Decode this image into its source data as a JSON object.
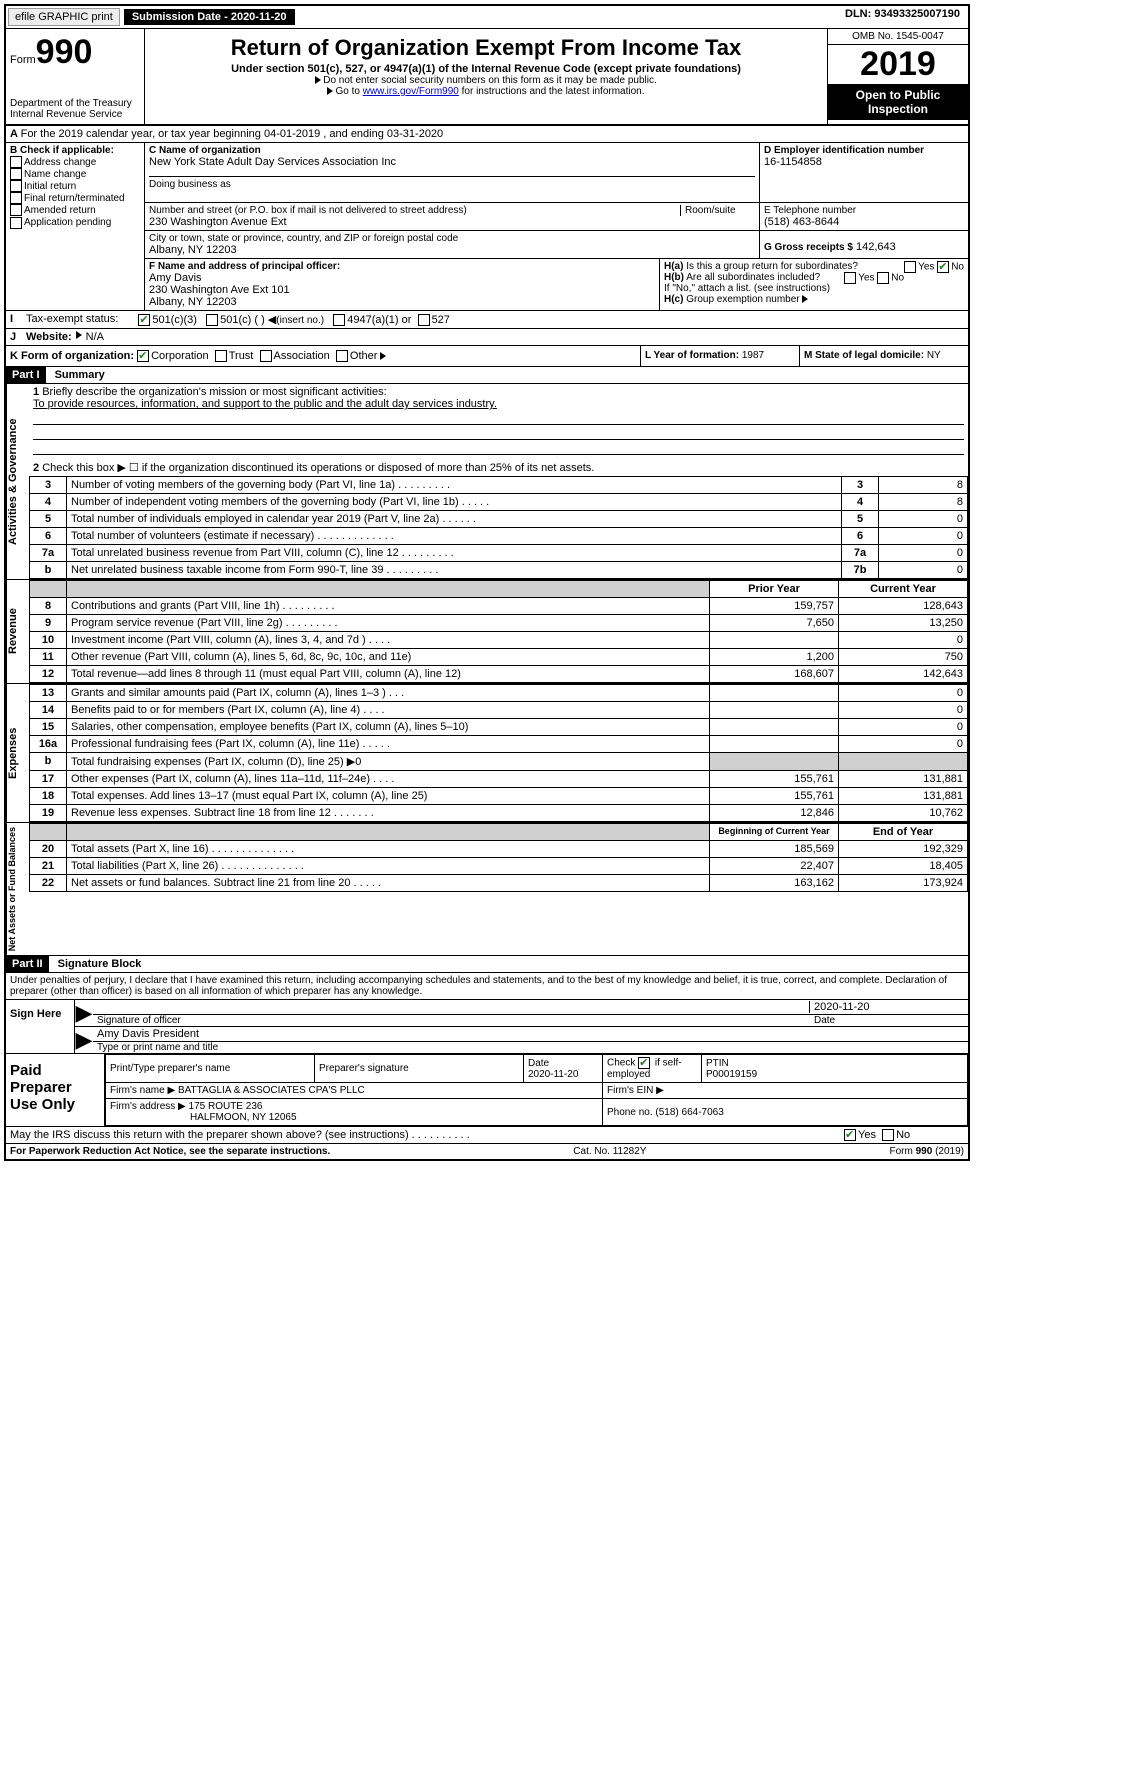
{
  "topbar": {
    "efile": "efile GRAPHIC print",
    "submission_label": "Submission Date - 2020-11-20",
    "dln": "DLN: 93493325007190"
  },
  "header": {
    "form_prefix": "Form",
    "form_number": "990",
    "dept1": "Department of the Treasury",
    "dept2": "Internal Revenue Service",
    "title": "Return of Organization Exempt From Income Tax",
    "subtitle": "Under section 501(c), 527, or 4947(a)(1) of the Internal Revenue Code (except private foundations)",
    "note1": "Do not enter social security numbers on this form as it may be made public.",
    "note2_pre": "Go to ",
    "note2_link": "www.irs.gov/Form990",
    "note2_post": " for instructions and the latest information.",
    "omb": "OMB No. 1545-0047",
    "year": "2019",
    "open": "Open to Public Inspection"
  },
  "lineA": "For the 2019 calendar year, or tax year beginning 04-01-2019   , and ending 03-31-2020",
  "boxB": {
    "title": "B Check if applicable:",
    "items": [
      "Address change",
      "Name change",
      "Initial return",
      "Final return/terminated",
      "Amended return",
      "Application pending"
    ]
  },
  "boxC": {
    "label_name": "C Name of organization",
    "org_name": "New York State Adult Day Services Association Inc",
    "dba_label": "Doing business as",
    "addr_label": "Number and street (or P.O. box if mail is not delivered to street address)",
    "room_label": "Room/suite",
    "street": "230 Washington Avenue Ext",
    "city_label": "City or town, state or province, country, and ZIP or foreign postal code",
    "city": "Albany, NY  12203"
  },
  "boxD": {
    "label": "D Employer identification number",
    "value": "16-1154858"
  },
  "boxE": {
    "label": "E Telephone number",
    "value": "(518) 463-8644"
  },
  "boxF": {
    "label": "F  Name and address of principal officer:",
    "name": "Amy Davis",
    "addr1": "230 Washington Ave Ext 101",
    "addr2": "Albany, NY  12203"
  },
  "boxG": {
    "label": "G Gross receipts $",
    "value": "142,643"
  },
  "boxH": {
    "a": "Is this a group return for subordinates?",
    "b": "Are all subordinates included?",
    "note": "If \"No,\" attach a list. (see instructions)",
    "c": "Group exemption number"
  },
  "yes": "Yes",
  "no": "No",
  "lineI": {
    "label": "Tax-exempt status:",
    "opt1": "501(c)(3)",
    "opt2": "501(c) (   )",
    "opt2_after": "(insert no.)",
    "opt3": "4947(a)(1) or",
    "opt4": "527"
  },
  "lineJ": {
    "label": "Website:",
    "value": "N/A"
  },
  "lineK": {
    "label": "K Form of organization:",
    "opts": [
      "Corporation",
      "Trust",
      "Association",
      "Other"
    ]
  },
  "lineL": {
    "label": "L Year of formation:",
    "value": "1987"
  },
  "lineM": {
    "label": "M State of legal domicile:",
    "value": "NY"
  },
  "part1": {
    "num": "Part I",
    "title": "Summary",
    "mission_label": "Briefly describe the organization's mission or most significant activities:",
    "mission_text": "To provide resources, information, and support to the public and the adult day services industry.",
    "line2": "Check this box ▶ ☐  if the organization discontinued its operations or disposed of more than 25% of its net assets.",
    "vlabels": {
      "gov": "Activities & Governance",
      "rev": "Revenue",
      "exp": "Expenses",
      "net": "Net Assets or Fund Balances"
    },
    "gov_rows": [
      {
        "n": "3",
        "t": "Number of voting members of the governing body (Part VI, line 1a)   .    .    .    .    .    .    .    .    .",
        "b": "3",
        "v": "8"
      },
      {
        "n": "4",
        "t": "Number of independent voting members of the governing body (Part VI, line 1b)   .    .    .    .    .",
        "b": "4",
        "v": "8"
      },
      {
        "n": "5",
        "t": "Total number of individuals employed in calendar year 2019 (Part V, line 2a)   .    .    .    .    .    .",
        "b": "5",
        "v": "0"
      },
      {
        "n": "6",
        "t": "Total number of volunteers (estimate if necessary)   .    .    .    .    .    .    .    .    .    .    .    .    .",
        "b": "6",
        "v": "0"
      },
      {
        "n": "7a",
        "t": "Total unrelated business revenue from Part VIII, column (C), line 12   .    .    .    .    .    .    .    .    .",
        "b": "7a",
        "v": "0"
      },
      {
        "n": "b",
        "t": "Net unrelated business taxable income from Form 990-T, line 39   .    .    .    .    .    .    .    .    .",
        "b": "7b",
        "v": "0"
      }
    ],
    "col_hdr": {
      "prior": "Prior Year",
      "current": "Current Year"
    },
    "rev_rows": [
      {
        "n": "8",
        "t": "Contributions and grants (Part VIII, line 1h)   .    .    .    .    .    .    .    .    .",
        "p": "159,757",
        "c": "128,643"
      },
      {
        "n": "9",
        "t": "Program service revenue (Part VIII, line 2g)   .    .    .    .    .    .    .    .    .",
        "p": "7,650",
        "c": "13,250"
      },
      {
        "n": "10",
        "t": "Investment income (Part VIII, column (A), lines 3, 4, and 7d )   .    .    .    .",
        "p": "",
        "c": "0"
      },
      {
        "n": "11",
        "t": "Other revenue (Part VIII, column (A), lines 5, 6d, 8c, 9c, 10c, and 11e)",
        "p": "1,200",
        "c": "750"
      },
      {
        "n": "12",
        "t": "Total revenue—add lines 8 through 11 (must equal Part VIII, column (A), line 12)",
        "p": "168,607",
        "c": "142,643"
      }
    ],
    "exp_rows": [
      {
        "n": "13",
        "t": "Grants and similar amounts paid (Part IX, column (A), lines 1–3 )   .    .    .",
        "p": "",
        "c": "0"
      },
      {
        "n": "14",
        "t": "Benefits paid to or for members (Part IX, column (A), line 4)   .    .    .    .",
        "p": "",
        "c": "0"
      },
      {
        "n": "15",
        "t": "Salaries, other compensation, employee benefits (Part IX, column (A), lines 5–10)",
        "p": "",
        "c": "0"
      },
      {
        "n": "16a",
        "t": "Professional fundraising fees (Part IX, column (A), line 11e)   .    .    .    .    .",
        "p": "",
        "c": "0"
      },
      {
        "n": "b",
        "t": "Total fundraising expenses (Part IX, column (D), line 25) ▶0",
        "p": "shade",
        "c": "shade"
      },
      {
        "n": "17",
        "t": "Other expenses (Part IX, column (A), lines 11a–11d, 11f–24e)   .    .    .    .",
        "p": "155,761",
        "c": "131,881"
      },
      {
        "n": "18",
        "t": "Total expenses. Add lines 13–17 (must equal Part IX, column (A), line 25)",
        "p": "155,761",
        "c": "131,881"
      },
      {
        "n": "19",
        "t": "Revenue less expenses. Subtract line 18 from line 12   .    .    .    .    .    .    .",
        "p": "12,846",
        "c": "10,762"
      }
    ],
    "net_hdr": {
      "begin": "Beginning of Current Year",
      "end": "End of Year"
    },
    "net_rows": [
      {
        "n": "20",
        "t": "Total assets (Part X, line 16)   .    .    .    .    .    .    .    .    .    .    .    .    .    .",
        "p": "185,569",
        "c": "192,329"
      },
      {
        "n": "21",
        "t": "Total liabilities (Part X, line 26)   .    .    .    .    .    .    .    .    .    .    .    .    .    .",
        "p": "22,407",
        "c": "18,405"
      },
      {
        "n": "22",
        "t": "Net assets or fund balances. Subtract line 21 from line 20   .    .    .    .    .",
        "p": "163,162",
        "c": "173,924"
      }
    ]
  },
  "part2": {
    "num": "Part II",
    "title": "Signature Block",
    "perjury": "Under penalties of perjury, I declare that I have examined this return, including accompanying schedules and statements, and to the best of my knowledge and belief, it is true, correct, and complete. Declaration of preparer (other than officer) is based on all information of which preparer has any knowledge.",
    "sign_here": "Sign Here",
    "sig_officer": "Signature of officer",
    "sig_date": "2020-11-20",
    "date_label": "Date",
    "officer_name": "Amy Davis President",
    "officer_type": "Type or print name and title",
    "paid_label": "Paid Preparer Use Only",
    "pt_name_label": "Print/Type preparer's name",
    "pt_sig_label": "Preparer's signature",
    "pt_date_label": "Date",
    "pt_date": "2020-11-20",
    "pt_check_label": "Check ☑ if self-employed",
    "ptin_label": "PTIN",
    "ptin": "P00019159",
    "firm_name_label": "Firm's name   ▶",
    "firm_name": "BATTAGLIA & ASSOCIATES CPA'S PLLC",
    "firm_ein_label": "Firm's EIN ▶",
    "firm_addr_label": "Firm's address ▶",
    "firm_addr1": "175 ROUTE 236",
    "firm_addr2": "HALFMOON, NY  12065",
    "phone_label": "Phone no.",
    "phone": "(518) 664-7063",
    "discuss": "May the IRS discuss this return with the preparer shown above? (see instructions)    .    .    .    .    .    .    .    .    .    ."
  },
  "footer": {
    "pra": "For Paperwork Reduction Act Notice, see the separate instructions.",
    "cat": "Cat. No. 11282Y",
    "form": "Form 990 (2019)"
  }
}
